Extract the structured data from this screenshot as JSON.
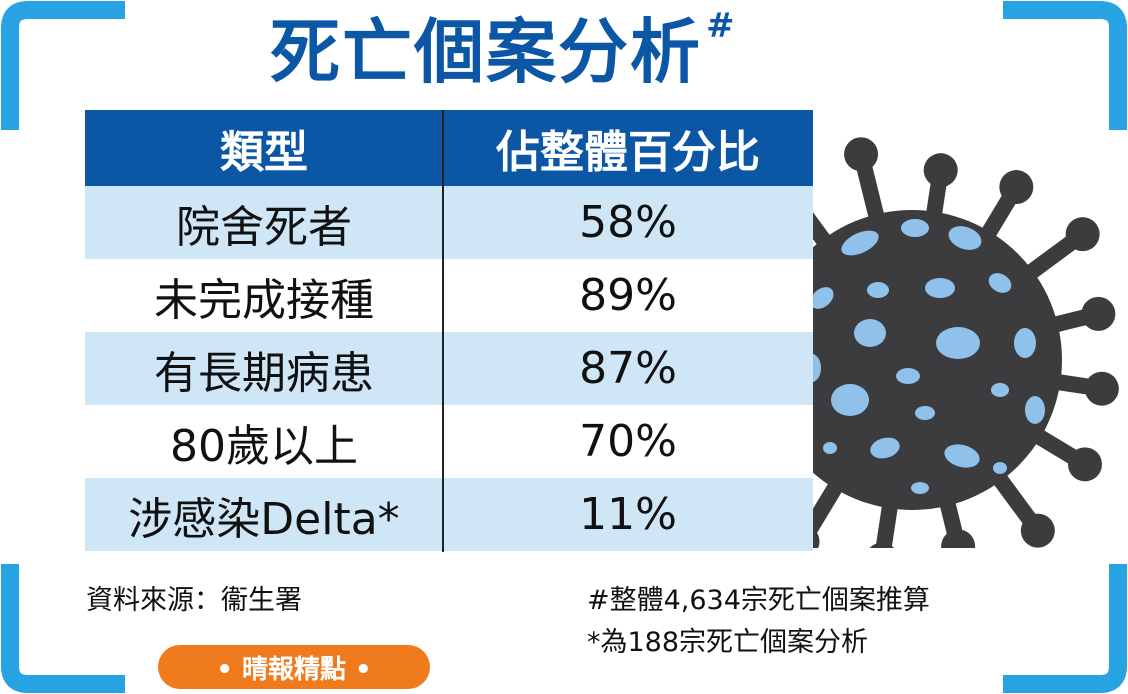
{
  "title": {
    "text": "死亡個案分析",
    "mark": "#",
    "color": "#0b57a6"
  },
  "table": {
    "header_color": "#0b57a6",
    "row_shade_color": "#cfe6f6",
    "columns": [
      "類型",
      "佔整體百分比"
    ],
    "rows": [
      {
        "type": "院舍死者",
        "percent": "58%"
      },
      {
        "type": "未完成接種",
        "percent": "89%"
      },
      {
        "type": "有長期病患",
        "percent": "87%"
      },
      {
        "type": "80歲以上",
        "percent": "70%"
      },
      {
        "type": "涉感染Delta*",
        "percent": "11%"
      }
    ]
  },
  "source": "資料來源：衞生署",
  "notes": [
    "#整體4,634宗死亡個案推算",
    "*為188宗死亡個案分析"
  ],
  "badge": {
    "text": "• 晴報精點 •",
    "color": "#f07b1c"
  },
  "decoration": {
    "bracket_color": "#27a3e3",
    "virus_icon": "coronavirus-icon",
    "virus_body_color": "#3c3c3e",
    "virus_spot_color": "#8fc1ea"
  }
}
